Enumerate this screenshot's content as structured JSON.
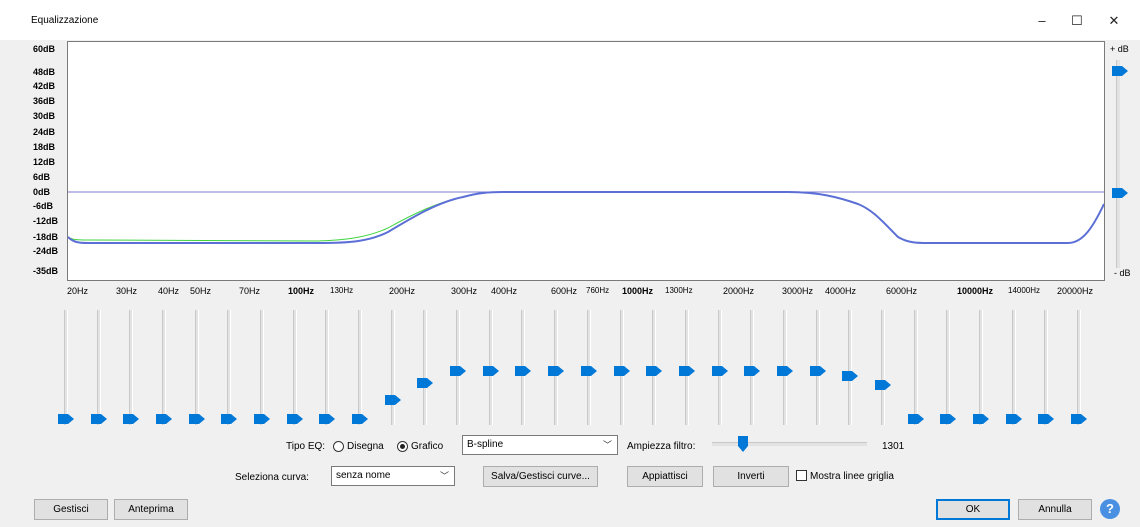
{
  "window": {
    "title": "Equalizzazione",
    "minimize_glyph": "–",
    "maximize_glyph": "☐",
    "close_glyph": "✕"
  },
  "graph": {
    "db_labels": [
      "60dB",
      "48dB",
      "42dB",
      "36dB",
      "30dB",
      "24dB",
      "18dB",
      "12dB",
      "6dB",
      "0dB",
      "-6dB",
      "-12dB",
      "-18dB",
      "-24dB",
      "-35dB"
    ],
    "hz_labels": [
      "20Hz",
      "30Hz",
      "40Hz",
      "50Hz",
      "70Hz",
      "100Hz",
      "130Hz",
      "200Hz",
      "300Hz",
      "400Hz",
      "600Hz",
      "760Hz",
      "1000Hz",
      "1300Hz",
      "2000Hz",
      "3000Hz",
      "4000Hz",
      "6000Hz",
      "10000Hz",
      "14000Hz",
      "20000Hz"
    ],
    "right_top_label": "+ dB",
    "right_bottom_label": "- dB",
    "curve_color": "#5b6fd6",
    "curve_green": "#3fd43f",
    "zero_line_color": "#7b7bd0"
  },
  "band_levels_db": [
    -20,
    -20,
    -20,
    -20,
    -20,
    -20,
    -20,
    -20,
    -20,
    -20,
    -12,
    -5,
    0,
    0,
    0,
    0,
    0,
    0,
    0,
    0,
    0,
    0,
    0,
    0,
    -2,
    -6,
    -20,
    -20,
    -20,
    -20,
    -20,
    -20
  ],
  "controls": {
    "eq_type_label": "Tipo EQ:",
    "radio_draw_label": "Disegna",
    "radio_graphic_label": "Grafico",
    "graphic_selected": true,
    "interpolation_value": "B-spline",
    "filter_width_label": "Ampiezza filtro:",
    "filter_width_value": "1301",
    "filter_width_fraction": 0.17,
    "select_curve_label": "Seleziona curva:",
    "curve_value": "senza nome",
    "save_manage_label": "Salva/Gestisci curve...",
    "flatten_label": "Appiattisci",
    "invert_label": "Inverti",
    "grid_lines_label": "Mostra linee griglia",
    "grid_lines_checked": false
  },
  "bottom": {
    "manage_label": "Gestisci",
    "preview_label": "Anteprima",
    "ok_label": "OK",
    "cancel_label": "Annulla",
    "help_glyph": "?"
  },
  "colors": {
    "accent": "#0078d7"
  }
}
